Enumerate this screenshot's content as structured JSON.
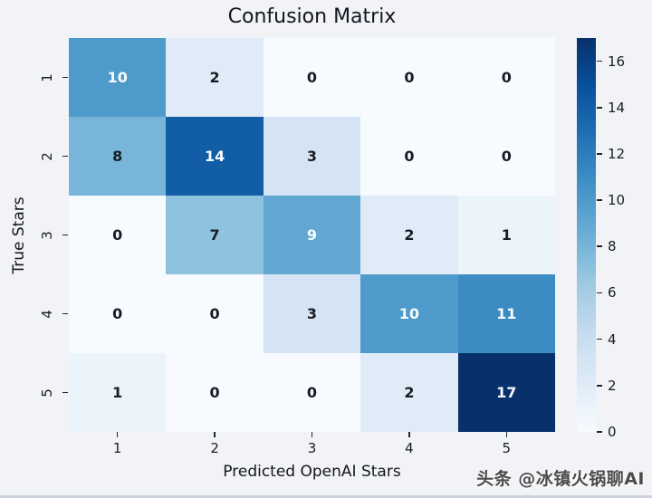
{
  "title": "Confusion Matrix",
  "axes": {
    "xlabel": "Predicted OpenAI Stars",
    "ylabel": "True Stars"
  },
  "watermark": {
    "text": "头条 @冰镇火锅聊AI",
    "color": "#4c4c4c"
  },
  "chart_data": {
    "type": "heatmap",
    "title": "Confusion Matrix",
    "xlabel": "Predicted OpenAI Stars",
    "ylabel": "True Stars",
    "x_categories": [
      "1",
      "2",
      "3",
      "4",
      "5"
    ],
    "y_categories": [
      "1",
      "2",
      "3",
      "4",
      "5"
    ],
    "matrix": [
      [
        10,
        2,
        0,
        0,
        0
      ],
      [
        8,
        14,
        3,
        0,
        0
      ],
      [
        0,
        7,
        9,
        2,
        1
      ],
      [
        0,
        0,
        3,
        10,
        11
      ],
      [
        1,
        0,
        0,
        2,
        17
      ]
    ],
    "vmin": 0,
    "vmax": 17,
    "colormap": "Blues",
    "colormap_anchors": [
      "#f7fbff",
      "#deebf7",
      "#c6dbef",
      "#9ecae1",
      "#6baed6",
      "#4292c6",
      "#2171b5",
      "#08519c",
      "#08306b"
    ],
    "colorbar_ticks": [
      16,
      14,
      12,
      10,
      8,
      6,
      4,
      2,
      0
    ],
    "annotation_dark_color": "#1a1c24",
    "annotation_light_color": "#f7fbfe",
    "grid": false,
    "legend_position": "colorbar-right"
  }
}
